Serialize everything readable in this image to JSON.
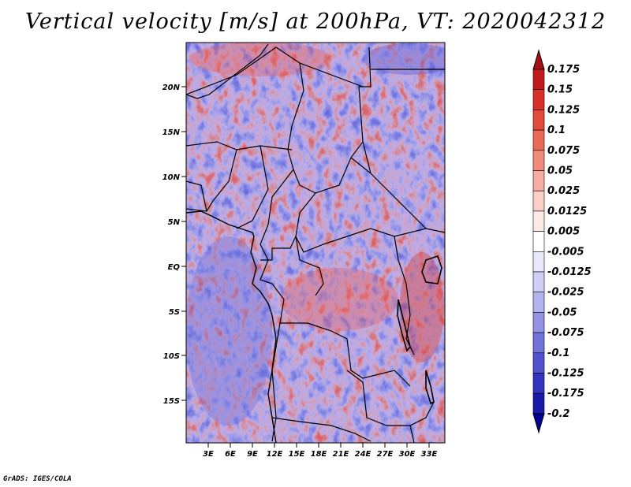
{
  "title": "Vertical velocity [m/s] at 200hPa, VT: 2020042312",
  "credit": "GrADS: IGES/COLA",
  "map": {
    "lat_labels": [
      "20N",
      "15N",
      "10N",
      "5N",
      "EQ",
      "5S",
      "10S",
      "15S"
    ],
    "lon_labels": [
      "3E",
      "6E",
      "9E",
      "12E",
      "15E",
      "18E",
      "21E",
      "24E",
      "27E",
      "30E",
      "33E"
    ]
  },
  "colorbar": {
    "labels": [
      "0.175",
      "0.15",
      "0.125",
      "0.1",
      "0.075",
      "0.05",
      "0.025",
      "0.0125",
      "0.005",
      "-0.005",
      "-0.0125",
      "-0.025",
      "-0.05",
      "-0.075",
      "-0.1",
      "-0.125",
      "-0.175",
      "-0.2"
    ],
    "colors": [
      "#a50f15",
      "#c0191e",
      "#d7302a",
      "#e24a3c",
      "#ea6a5a",
      "#f08b7c",
      "#f6aca0",
      "#fbcfc7",
      "#fdeae6",
      "#ffffff",
      "#e9e9fb",
      "#cfcff6",
      "#b3b3ef",
      "#9393e6",
      "#7272db",
      "#5252cf",
      "#3434c0",
      "#1a1aaa",
      "#000095"
    ]
  }
}
